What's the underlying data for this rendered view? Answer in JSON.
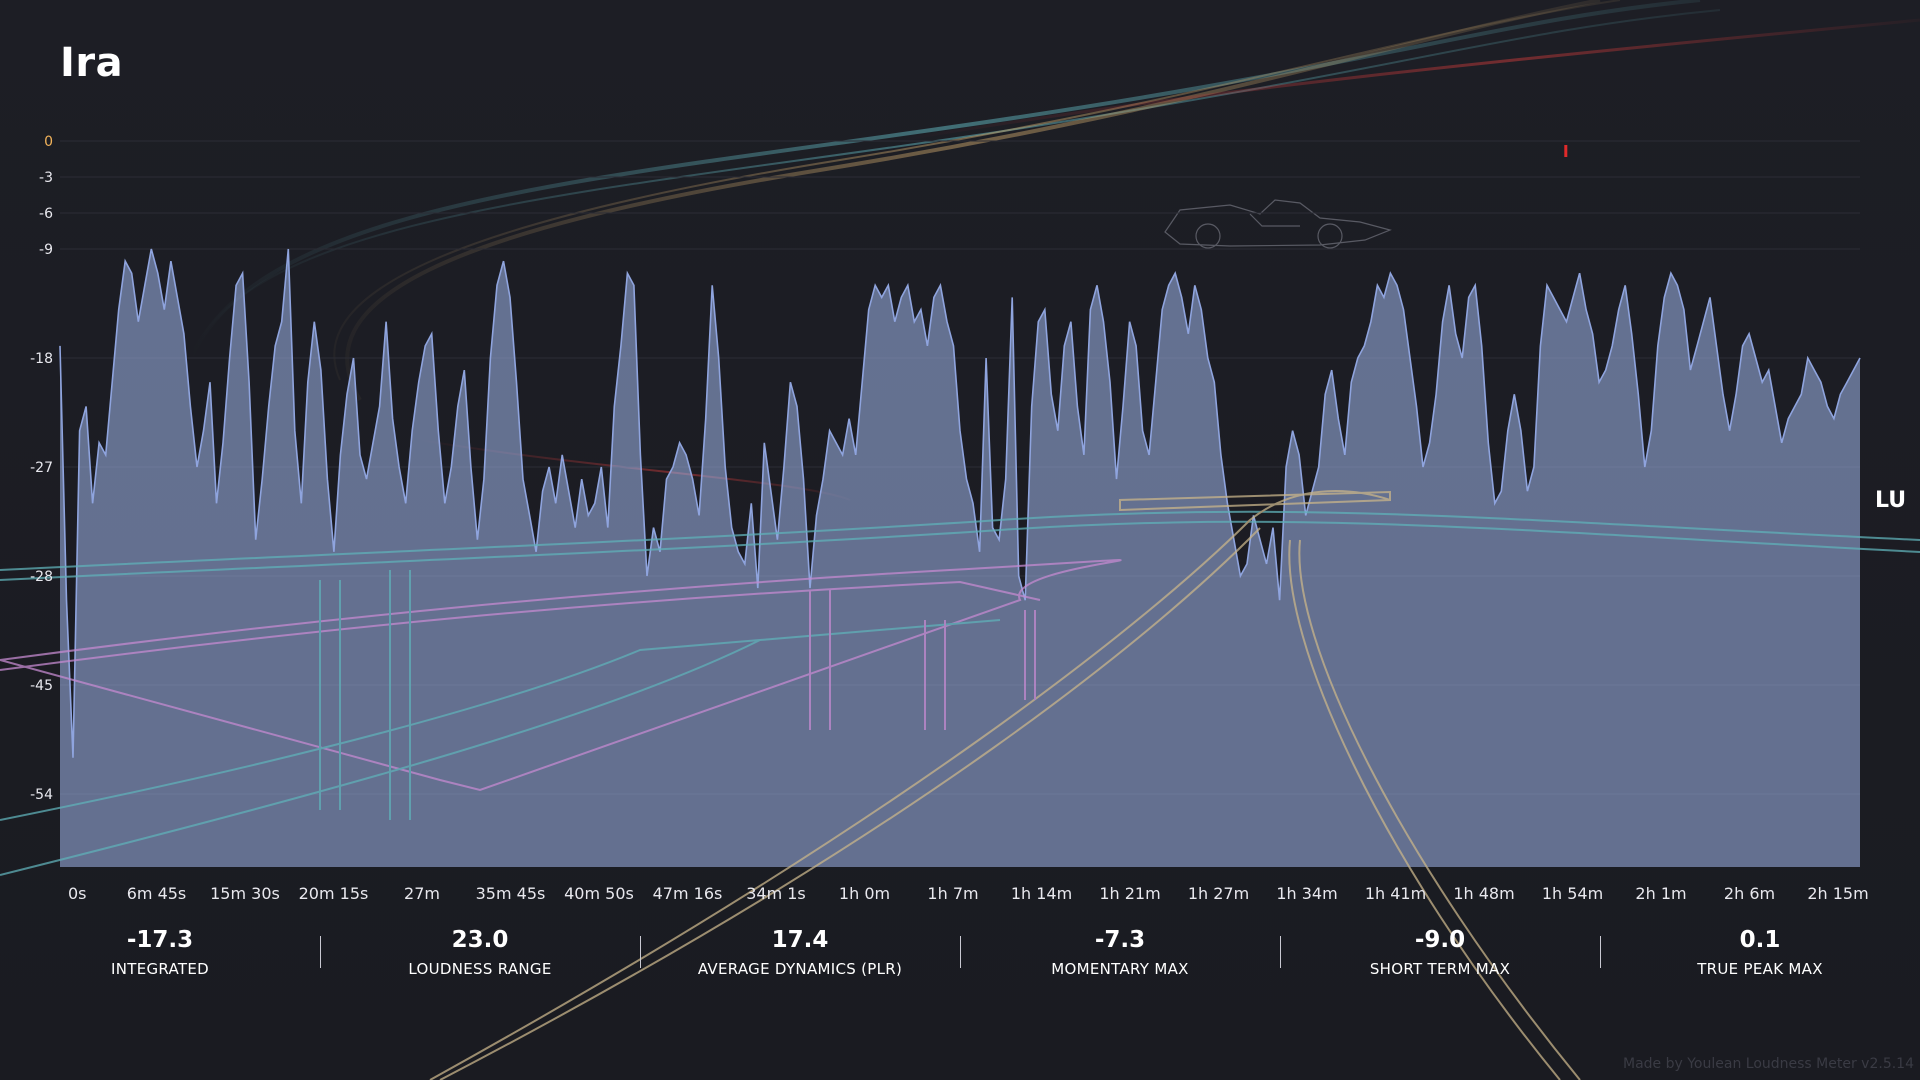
{
  "title": "Ira",
  "unit_label": "LU",
  "credit": "Made by Youlean Loudness Meter v2.5.14",
  "colors": {
    "background": "#1b1c22",
    "area_fill": "#9aaee0",
    "line": "#8fa4de",
    "grid": "#2c2d36",
    "zero_tick": "#f2b35a",
    "peak_marker": "#e02a2a",
    "decor_teal": "#5fb0b8",
    "decor_pink": "#c58ad0",
    "decor_gold": "#c8a46a",
    "decor_red": "#c83a3a"
  },
  "stats": [
    {
      "value": "-17.3",
      "label": "INTEGRATED"
    },
    {
      "value": "23.0",
      "label": "LOUDNESS RANGE"
    },
    {
      "value": "17.4",
      "label": "AVERAGE DYNAMICS (PLR)"
    },
    {
      "value": "-7.3",
      "label": "MOMENTARY MAX"
    },
    {
      "value": "-9.0",
      "label": "SHORT TERM MAX"
    },
    {
      "value": "0.1",
      "label": "TRUE PEAK MAX"
    }
  ],
  "decor_icons": [
    "highway-interchange-art",
    "race-car-art",
    "light-trails-art"
  ],
  "chart_data": {
    "type": "area",
    "title": "Ira",
    "xlabel": "",
    "ylabel": "LU",
    "ylim": [
      -60,
      0
    ],
    "grid": true,
    "y_tick_labels": [
      "0",
      "-3",
      "-6",
      "-9",
      "-18",
      "-27",
      "-28",
      "-45",
      "-54"
    ],
    "x_tick_labels": [
      "0s",
      "6m 45s",
      "15m 30s",
      "20m 15s",
      "27m",
      "35m 45s",
      "40m 50s",
      "47m 16s",
      "34m 1s",
      "1h 0m",
      "1h 7m",
      "1h 14m",
      "1h 21m",
      "1h 27m",
      "1h 34m",
      "1h 41m",
      "1h 48m",
      "1h 54m",
      "2h 1m",
      "2h 6m",
      "2h 15m"
    ],
    "x_range_minutes": [
      0,
      140
    ],
    "series": [
      {
        "values_short_term_lufs": [
          -17,
          -38,
          -51,
          -24,
          -22,
          -30,
          -25,
          -26,
          -20,
          -14,
          -10,
          -11,
          -15,
          -12,
          -9,
          -11,
          -14,
          -10,
          -13,
          -16,
          -22,
          -27,
          -24,
          -20,
          -30,
          -25,
          -18,
          -12,
          -11,
          -20,
          -33,
          -28,
          -22,
          -17,
          -15,
          -9,
          -24,
          -30,
          -20,
          -15,
          -19,
          -28,
          -34,
          -26,
          -21,
          -18,
          -26,
          -28,
          -25,
          -22,
          -15,
          -23,
          -27,
          -30,
          -24,
          -20,
          -17,
          -16,
          -24,
          -30,
          -27,
          -22,
          -19,
          -27,
          -33,
          -28,
          -18,
          -12,
          -10,
          -13,
          -20,
          -28,
          -31,
          -34,
          -29,
          -27,
          -30,
          -26,
          -29,
          -32,
          -28,
          -31,
          -30,
          -27,
          -32,
          -22,
          -17,
          -11,
          -12,
          -26,
          -36,
          -32,
          -34,
          -28,
          -27,
          -25,
          -26,
          -28,
          -31,
          -23,
          -12,
          -18,
          -27,
          -32,
          -34,
          -35,
          -30,
          -37,
          -25,
          -29,
          -33,
          -27,
          -20,
          -22,
          -28,
          -37,
          -31,
          -28,
          -24,
          -25,
          -26,
          -23,
          -26,
          -20,
          -14,
          -12,
          -13,
          -12,
          -15,
          -13,
          -12,
          -15,
          -14,
          -17,
          -13,
          -12,
          -15,
          -17,
          -24,
          -28,
          -30,
          -34,
          -18,
          -32,
          -33,
          -28,
          -13,
          -36,
          -38,
          -22,
          -15,
          -14,
          -21,
          -24,
          -17,
          -15,
          -22,
          -26,
          -14,
          -12,
          -15,
          -20,
          -28,
          -22,
          -15,
          -17,
          -24,
          -26,
          -20,
          -14,
          -12,
          -11,
          -13,
          -16,
          -12,
          -14,
          -18,
          -20,
          -26,
          -30,
          -33,
          -36,
          -35,
          -31,
          -33,
          -35,
          -32,
          -38,
          -27,
          -24,
          -26,
          -31,
          -29,
          -27,
          -21,
          -19,
          -23,
          -26,
          -20,
          -18,
          -17,
          -15,
          -12,
          -13,
          -11,
          -12,
          -14,
          -18,
          -22,
          -27,
          -25,
          -21,
          -15,
          -12,
          -16,
          -18,
          -13,
          -12,
          -17,
          -25,
          -30,
          -29,
          -24,
          -21,
          -24,
          -29,
          -27,
          -17,
          -12,
          -13,
          -14,
          -15,
          -13,
          -11,
          -14,
          -16,
          -20,
          -19,
          -17,
          -14,
          -12,
          -16,
          -21,
          -27,
          -24,
          -17,
          -13,
          -11,
          -12,
          -14,
          -19,
          -17,
          -15,
          -13,
          -17,
          -21,
          -24,
          -21,
          -17,
          -16,
          -18,
          -20,
          -19,
          -22,
          -25,
          -23,
          -22,
          -21,
          -18,
          -19,
          -20,
          -22,
          -23,
          -21,
          -20,
          -19,
          -18
        ]
      }
    ],
    "true_peak_marker": {
      "time_minutes": 117,
      "lufs": -0.5
    }
  }
}
